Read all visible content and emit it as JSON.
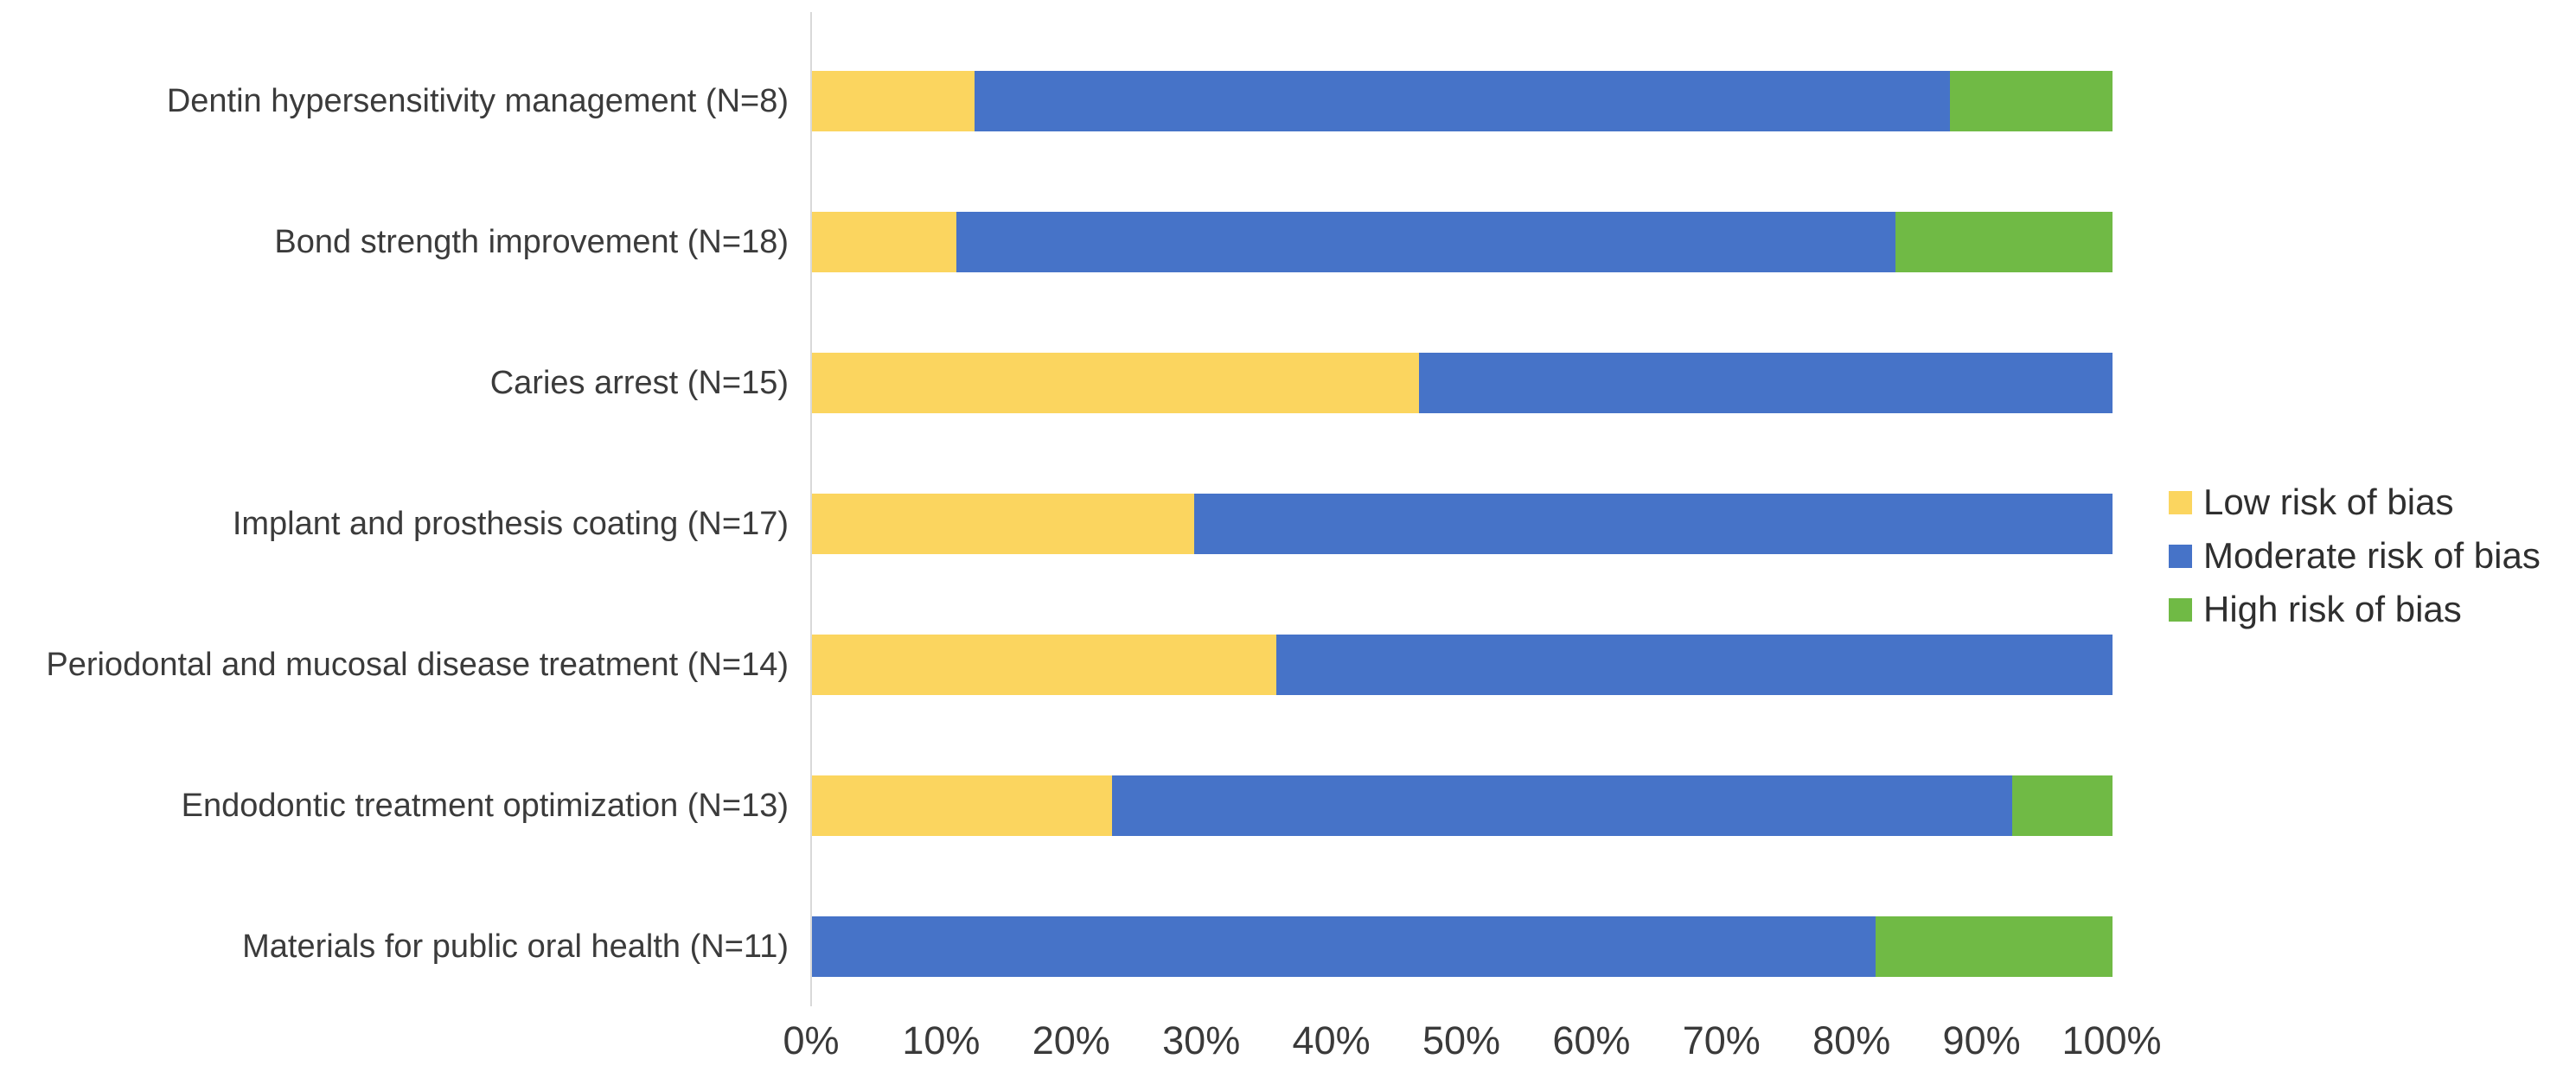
{
  "chart_data": {
    "type": "bar",
    "orientation": "horizontal",
    "stacked": true,
    "unit": "percent",
    "title": "",
    "xlabel": "",
    "ylabel": "",
    "grid": false,
    "axis_line_color": "#d9d9d9",
    "categories": [
      "Dentin hypersensitivity management (N=8)",
      "Bond strength improvement (N=18)",
      "Caries arrest (N=15)",
      "Implant and prosthesis coating (N=17)",
      "Periodontal and mucosal disease treatment (N=14)",
      "Endodontic treatment optimization (N=13)",
      "Materials for public oral health (N=11)"
    ],
    "series": [
      {
        "name": "Low risk of bias",
        "color": "#FBD55F",
        "values": [
          12.5,
          11.1,
          46.7,
          29.4,
          35.7,
          23.1,
          0.0
        ]
      },
      {
        "name": "Moderate risk of bias",
        "color": "#4673C8",
        "values": [
          75.0,
          72.2,
          53.3,
          70.6,
          64.3,
          69.2,
          81.8
        ]
      },
      {
        "name": "High risk of bias",
        "color": "#70BA45",
        "values": [
          12.5,
          16.7,
          0.0,
          0.0,
          0.0,
          7.7,
          18.2
        ]
      }
    ],
    "x_axis": {
      "min": 0,
      "max": 100,
      "tick_labels": [
        "0%",
        "10%",
        "20%",
        "30%",
        "40%",
        "50%",
        "60%",
        "70%",
        "80%",
        "90%",
        "100%"
      ]
    },
    "legend": {
      "position": "right",
      "entries": [
        "Low risk of bias",
        "Moderate risk of bias",
        "High risk of bias"
      ]
    }
  }
}
